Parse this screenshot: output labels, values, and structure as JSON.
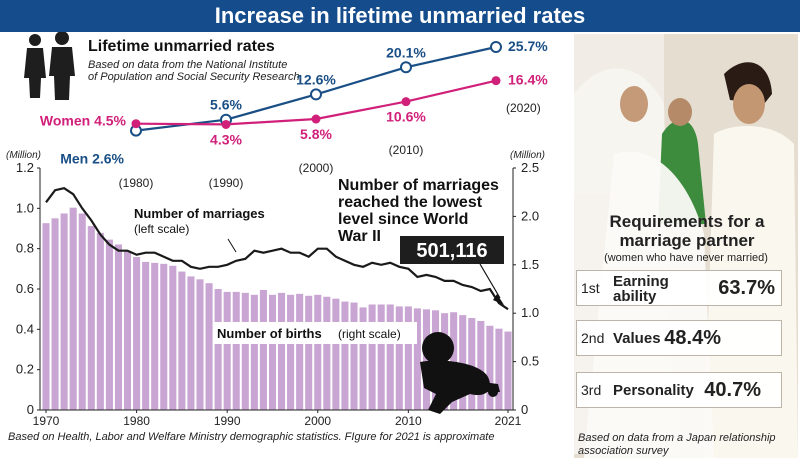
{
  "banner": {
    "title": "Increase in lifetime unmarried rates"
  },
  "unmarried": {
    "title": "Lifetime unmarried rates",
    "source_line1": "Based on data from the National Institute",
    "source_line2": "of Population and Social Security Research"
  },
  "chart_data": [
    {
      "type": "line",
      "title": "Lifetime unmarried rates",
      "source": "Based on data from the National Institute of Population and Social Security Research",
      "x": [
        1980,
        1990,
        2000,
        2010,
        2020
      ],
      "x_labels": [
        "(1980)",
        "(1990)",
        "(2000)",
        "(2010)",
        "(2020)"
      ],
      "series": [
        {
          "name": "Men",
          "color": "#1a4f86",
          "values": [
            2.6,
            5.6,
            12.6,
            20.1,
            25.7
          ],
          "labels": [
            "2.6%",
            "5.6%",
            "12.6%",
            "20.1%",
            "25.7%"
          ]
        },
        {
          "name": "Women",
          "color": "#d1207a",
          "values": [
            4.5,
            4.3,
            5.8,
            10.6,
            16.4
          ],
          "labels": [
            "4.5%",
            "4.3%",
            "5.8%",
            "10.6%",
            "16.4%"
          ]
        }
      ]
    },
    {
      "type": "bar",
      "left_unit": "(Million)",
      "right_unit": "(Million)",
      "left_ylim": [
        0,
        1.2
      ],
      "right_ylim": [
        0,
        2.5
      ],
      "left_ticks": [
        "0",
        "0.2",
        "0.4",
        "0.6",
        "0.8",
        "1.0",
        "1.2"
      ],
      "right_ticks": [
        "0",
        "0.5",
        "1.0",
        "1.5",
        "2.0",
        "2.5"
      ],
      "x_ticks": [
        "1970",
        "1980",
        "1990",
        "2000",
        "2010",
        "2021"
      ],
      "years": [
        1970,
        1971,
        1972,
        1973,
        1974,
        1975,
        1976,
        1977,
        1978,
        1979,
        1980,
        1981,
        1982,
        1983,
        1984,
        1985,
        1986,
        1987,
        1988,
        1989,
        1990,
        1991,
        1992,
        1993,
        1994,
        1995,
        1996,
        1997,
        1998,
        1999,
        2000,
        2001,
        2002,
        2003,
        2004,
        2005,
        2006,
        2007,
        2008,
        2009,
        2010,
        2011,
        2012,
        2013,
        2014,
        2015,
        2016,
        2017,
        2018,
        2019,
        2020,
        2021
      ],
      "births": [
        1.93,
        1.98,
        2.03,
        2.09,
        2.03,
        1.9,
        1.83,
        1.76,
        1.71,
        1.64,
        1.58,
        1.53,
        1.52,
        1.51,
        1.49,
        1.43,
        1.38,
        1.35,
        1.31,
        1.25,
        1.22,
        1.22,
        1.21,
        1.19,
        1.24,
        1.19,
        1.21,
        1.19,
        1.2,
        1.18,
        1.19,
        1.17,
        1.15,
        1.12,
        1.11,
        1.06,
        1.09,
        1.09,
        1.09,
        1.07,
        1.07,
        1.05,
        1.04,
        1.03,
        1.0,
        1.01,
        0.98,
        0.95,
        0.92,
        0.87,
        0.84,
        0.81
      ],
      "births_color": "#c9a5d3",
      "births_label": "Number of births",
      "births_scale": "(right scale)",
      "marriages": [
        1.03,
        1.09,
        1.1,
        1.07,
        1.0,
        0.94,
        0.87,
        0.82,
        0.79,
        0.79,
        0.77,
        0.78,
        0.78,
        0.76,
        0.74,
        0.74,
        0.71,
        0.7,
        0.71,
        0.71,
        0.72,
        0.74,
        0.75,
        0.79,
        0.78,
        0.79,
        0.8,
        0.78,
        0.78,
        0.76,
        0.8,
        0.8,
        0.76,
        0.74,
        0.72,
        0.71,
        0.73,
        0.72,
        0.73,
        0.71,
        0.7,
        0.66,
        0.67,
        0.66,
        0.64,
        0.64,
        0.62,
        0.61,
        0.59,
        0.6,
        0.53,
        0.5
      ],
      "marriages_label": "Number of marriages",
      "marriages_scale": "(left scale)",
      "headline": "Number of marriages reached the lowest level since World War II",
      "headline_lines": [
        "Number of marriages",
        "reached the lowest",
        "level since World",
        "War II"
      ],
      "highlight_value": "501,116",
      "footnote": "Based on Health, Labor and Welfare Ministry demographic statistics. FIgure for 2021 is approximate"
    },
    {
      "type": "table",
      "title": "Requirements for a marriage partner",
      "title_lines": [
        "Requirements for a",
        "marriage partner"
      ],
      "subtitle": "(women who have never married)",
      "rows": [
        {
          "rank": "1st",
          "label": "Earning ability",
          "label_lines": [
            "Earning",
            "ability"
          ],
          "value": 63.7,
          "display": "63.7%"
        },
        {
          "rank": "2nd",
          "label": "Values",
          "label_lines": [
            "Values"
          ],
          "value": 48.4,
          "display": "48.4%"
        },
        {
          "rank": "3rd",
          "label": "Personality",
          "label_lines": [
            "Personality"
          ],
          "value": 40.7,
          "display": "40.7%"
        }
      ],
      "source": "Based on data from a Japan relationship association survey",
      "source_lines": [
        "Based on data from a Japan relationship",
        "association survey"
      ]
    }
  ]
}
